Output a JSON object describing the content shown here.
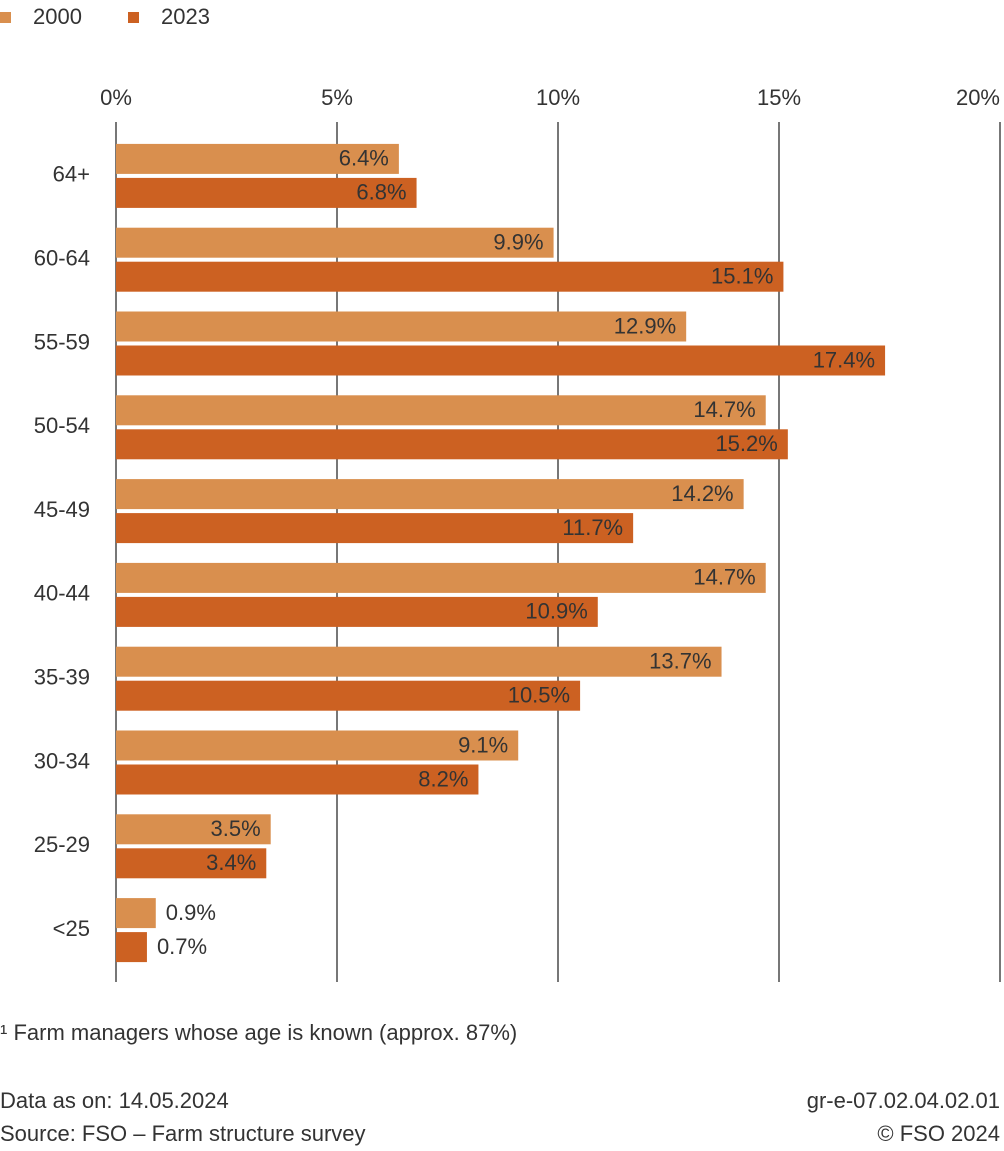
{
  "chart_data": {
    "type": "hbar",
    "categories": [
      "64+",
      "60-64",
      "55-59",
      "50-54",
      "45-49",
      "40-44",
      "35-39",
      "30-34",
      "25-29",
      "<25"
    ],
    "series": [
      {
        "name": "2000",
        "color": "#d98f4e",
        "values": [
          6.4,
          9.9,
          12.9,
          14.7,
          14.2,
          14.7,
          13.7,
          9.1,
          3.5,
          0.9
        ],
        "value_labels": [
          "6.4%",
          "9.9%",
          "12.9%",
          "14.7%",
          "14.2%",
          "14.7%",
          "13.7%",
          "9.1%",
          "3.5%",
          "0.9%"
        ]
      },
      {
        "name": "2023",
        "color": "#cc6122",
        "values": [
          6.8,
          15.1,
          17.4,
          15.2,
          11.7,
          10.9,
          10.5,
          8.2,
          3.4,
          0.7
        ],
        "value_labels": [
          "6.8%",
          "15.1%",
          "17.4%",
          "15.2%",
          "11.7%",
          "10.9%",
          "10.5%",
          "8.2%",
          "3.4%",
          "0.7%"
        ]
      }
    ],
    "xlim": [
      0,
      20
    ],
    "xticks": [
      {
        "value": 0,
        "label": "0%"
      },
      {
        "value": 5,
        "label": "5%"
      },
      {
        "value": 10,
        "label": "10%"
      },
      {
        "value": 15,
        "label": "15%"
      },
      {
        "value": 20,
        "label": "20%"
      }
    ],
    "grid": true,
    "footnote": "¹ Farm managers whose age is known (approx. 87%)",
    "data_date": "Data as on: 14.05.2024",
    "source": "Source: FSO – Farm structure survey",
    "chart_id": "gr-e-07.02.04.02.01",
    "copyright": "© FSO 2024"
  }
}
